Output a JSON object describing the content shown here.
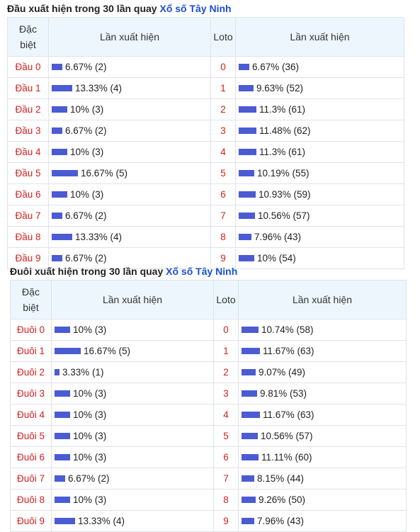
{
  "head_section": {
    "title": "Đầu xuất hiện trong 30 lần quay",
    "link": "Xổ số Tây Ninh",
    "col_special_line1": "Đặc",
    "col_special_line2": "biệt",
    "col_count": "Lần xuất hiện",
    "col_loto": "Loto",
    "col_count2": "Lần xuất hiện",
    "rows": [
      {
        "label": "Đầu 0",
        "special_pct": 6.67,
        "special_text": "6.67% (2)",
        "loto": "0",
        "loto_pct": 6.67,
        "loto_text": "6.67% (36)"
      },
      {
        "label": "Đầu 1",
        "special_pct": 13.33,
        "special_text": "13.33% (4)",
        "loto": "1",
        "loto_pct": 9.63,
        "loto_text": "9.63% (52)"
      },
      {
        "label": "Đầu 2",
        "special_pct": 10,
        "special_text": "10% (3)",
        "loto": "2",
        "loto_pct": 11.3,
        "loto_text": "11.3% (61)"
      },
      {
        "label": "Đầu 3",
        "special_pct": 6.67,
        "special_text": "6.67% (2)",
        "loto": "3",
        "loto_pct": 11.48,
        "loto_text": "11.48% (62)"
      },
      {
        "label": "Đầu 4",
        "special_pct": 10,
        "special_text": "10% (3)",
        "loto": "4",
        "loto_pct": 11.3,
        "loto_text": "11.3% (61)"
      },
      {
        "label": "Đầu 5",
        "special_pct": 16.67,
        "special_text": "16.67% (5)",
        "loto": "5",
        "loto_pct": 10.19,
        "loto_text": "10.19% (55)"
      },
      {
        "label": "Đầu 6",
        "special_pct": 10,
        "special_text": "10% (3)",
        "loto": "6",
        "loto_pct": 10.93,
        "loto_text": "10.93% (59)"
      },
      {
        "label": "Đầu 7",
        "special_pct": 6.67,
        "special_text": "6.67% (2)",
        "loto": "7",
        "loto_pct": 10.56,
        "loto_text": "10.56% (57)"
      },
      {
        "label": "Đầu 8",
        "special_pct": 13.33,
        "special_text": "13.33% (4)",
        "loto": "8",
        "loto_pct": 7.96,
        "loto_text": "7.96% (43)"
      },
      {
        "label": "Đầu 9",
        "special_pct": 6.67,
        "special_text": "6.67% (2)",
        "loto": "9",
        "loto_pct": 10,
        "loto_text": "10% (54)"
      }
    ]
  },
  "tail_section": {
    "title": "Đuôi xuất hiện trong 30 lần quay",
    "link": "Xổ số Tây Ninh",
    "col_special_line1": "Đặc",
    "col_special_line2": "biệt",
    "col_count": "Lần xuất hiện",
    "col_loto": "Loto",
    "col_count2": "Lần xuất hiện",
    "rows": [
      {
        "label": "Đuôi 0",
        "special_pct": 10,
        "special_text": "10% (3)",
        "loto": "0",
        "loto_pct": 10.74,
        "loto_text": "10.74% (58)"
      },
      {
        "label": "Đuôi 1",
        "special_pct": 16.67,
        "special_text": "16.67% (5)",
        "loto": "1",
        "loto_pct": 11.67,
        "loto_text": "11.67% (63)"
      },
      {
        "label": "Đuôi 2",
        "special_pct": 3.33,
        "special_text": "3.33% (1)",
        "loto": "2",
        "loto_pct": 9.07,
        "loto_text": "9.07% (49)"
      },
      {
        "label": "Đuôi 3",
        "special_pct": 10,
        "special_text": "10% (3)",
        "loto": "3",
        "loto_pct": 9.81,
        "loto_text": "9.81% (53)"
      },
      {
        "label": "Đuôi 4",
        "special_pct": 10,
        "special_text": "10% (3)",
        "loto": "4",
        "loto_pct": 11.67,
        "loto_text": "11.67% (63)"
      },
      {
        "label": "Đuôi 5",
        "special_pct": 10,
        "special_text": "10% (3)",
        "loto": "5",
        "loto_pct": 10.56,
        "loto_text": "10.56% (57)"
      },
      {
        "label": "Đuôi 6",
        "special_pct": 10,
        "special_text": "10% (3)",
        "loto": "6",
        "loto_pct": 11.11,
        "loto_text": "11.11% (60)"
      },
      {
        "label": "Đuôi 7",
        "special_pct": 6.67,
        "special_text": "6.67% (2)",
        "loto": "7",
        "loto_pct": 8.15,
        "loto_text": "8.15% (44)"
      },
      {
        "label": "Đuôi 8",
        "special_pct": 10,
        "special_text": "10% (3)",
        "loto": "8",
        "loto_pct": 9.26,
        "loto_text": "9.26% (50)"
      },
      {
        "label": "Đuôi 9",
        "special_pct": 13.33,
        "special_text": "13.33% (4)",
        "loto": "9",
        "loto_pct": 7.96,
        "loto_text": "7.96% (43)"
      }
    ]
  },
  "colors": {
    "bar": "#4a5bd4",
    "label": "#d42020",
    "link": "#1a4fd6",
    "header_bg": "#eef6fd"
  }
}
